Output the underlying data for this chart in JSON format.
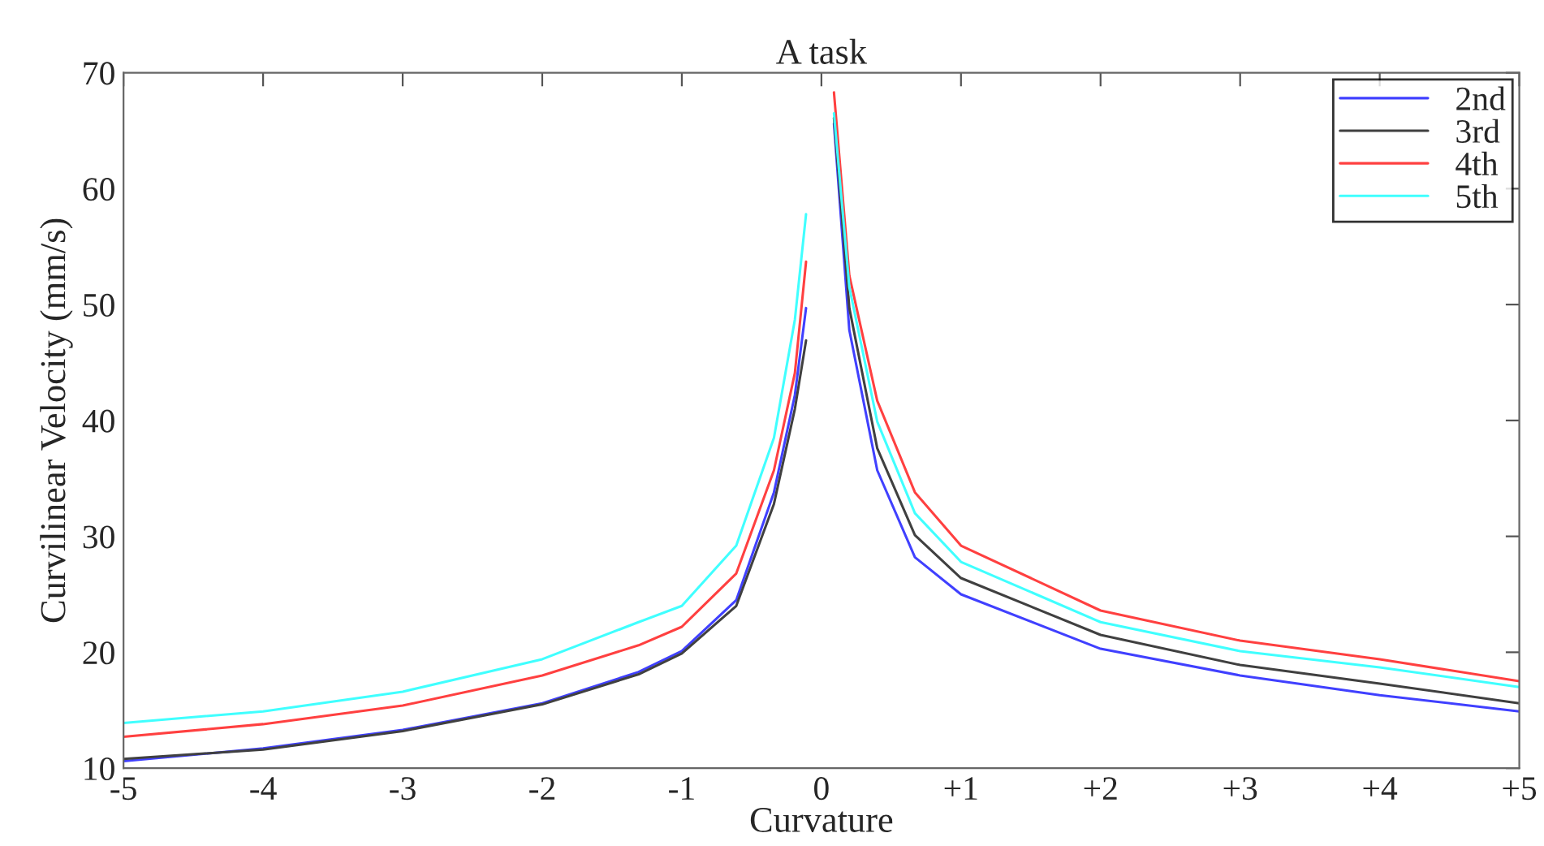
{
  "chart_data": {
    "type": "line",
    "title": "A task",
    "xlabel": "Curvature",
    "ylabel": "Curvilinear Velocity (mm/s)",
    "x": [
      -5,
      -4,
      -3,
      -2,
      -1.31,
      -1,
      -0.61,
      -0.34,
      -0.19,
      -0.11,
      0,
      0.09,
      0.2,
      0.4,
      0.67,
      1,
      2,
      3,
      4,
      5
    ],
    "series": [
      {
        "name": "2nd",
        "color": "#4040ff",
        "values": [
          10.6,
          11.7,
          13.3,
          15.6,
          18.3,
          20.1,
          24.5,
          33.8,
          42.2,
          49.7,
          null,
          65.6,
          47.8,
          35.7,
          28.2,
          25.0,
          20.3,
          18.0,
          16.3,
          14.9
        ]
      },
      {
        "name": "3rd",
        "color": "#404040",
        "values": [
          10.8,
          11.6,
          13.2,
          15.5,
          18.1,
          19.9,
          24.0,
          32.8,
          41.0,
          46.9,
          null,
          66.1,
          49.7,
          37.6,
          30.1,
          26.4,
          21.5,
          18.9,
          17.3,
          15.6
        ]
      },
      {
        "name": "4th",
        "color": "#ff4040",
        "values": [
          12.7,
          13.8,
          15.4,
          18.0,
          20.6,
          22.2,
          26.8,
          35.7,
          44.1,
          53.7,
          null,
          68.3,
          52.5,
          41.7,
          33.8,
          29.2,
          23.6,
          21.0,
          19.4,
          17.5
        ]
      },
      {
        "name": "5th",
        "color": "#40ffff",
        "values": [
          13.9,
          14.9,
          16.6,
          19.4,
          22.6,
          24.0,
          29.2,
          38.5,
          48.7,
          57.8,
          null,
          66.5,
          51.5,
          39.9,
          32.0,
          27.8,
          22.6,
          20.1,
          18.7,
          17.0
        ]
      }
    ],
    "xlim": [
      -5,
      5
    ],
    "xticks": [
      -5,
      -4,
      -3,
      -2,
      -1,
      0,
      {
        "value": 1,
        "label": "+1"
      },
      {
        "value": 2,
        "label": "+2"
      },
      {
        "value": 3,
        "label": "+3"
      },
      {
        "value": 4,
        "label": "+4"
      },
      {
        "value": 5,
        "label": "+5"
      }
    ],
    "ylim": [
      10,
      70
    ],
    "yticks": [
      10,
      20,
      30,
      40,
      50,
      60,
      70
    ],
    "grid": false,
    "legend": "top right",
    "line_style": "solid",
    "marker": "none"
  }
}
